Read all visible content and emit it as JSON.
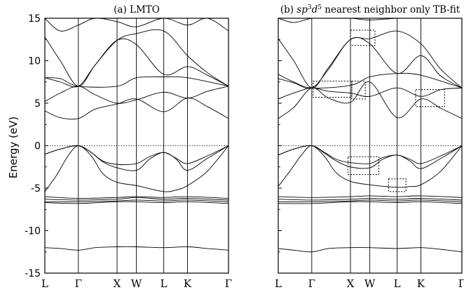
{
  "chart_data": [
    {
      "type": "line",
      "title": "(a) LMTO",
      "ylabel": "Energy (eV)",
      "xlabel": "",
      "ylim": [
        -15,
        15
      ],
      "yticks": [
        15,
        10,
        5,
        0,
        -5,
        -10,
        -15
      ],
      "grid": false,
      "high_symmetry_points": [
        {
          "label": "L",
          "k": 0
        },
        {
          "label": "Γ",
          "k": 0.866
        },
        {
          "label": "X",
          "k": 1.866
        },
        {
          "label": "W",
          "k": 2.366
        },
        {
          "label": "L",
          "k": 3.073
        },
        {
          "label": "K",
          "k": 3.685
        },
        {
          "label": "Γ",
          "k": 4.746
        }
      ],
      "fermi_level": 0,
      "series": [
        {
          "x": [
            0,
            0.4,
            0.866,
            1.3,
            1.866,
            2.366,
            3.073,
            3.685,
            4.2,
            4.746
          ],
          "y": [
            -12.0,
            -12.1,
            -12.3,
            -12.0,
            -11.9,
            -11.9,
            -12.0,
            -11.9,
            -12.1,
            -12.3
          ]
        },
        {
          "x": [
            0,
            0.866,
            1.866,
            2.366,
            3.073,
            3.685,
            4.746
          ],
          "y": [
            -6.0,
            -6.2,
            -6.1,
            -6.0,
            -6.1,
            -6.0,
            -6.2
          ]
        },
        {
          "x": [
            0,
            0.866,
            1.866,
            2.366,
            3.073,
            3.685,
            4.746
          ],
          "y": [
            -6.3,
            -6.4,
            -6.3,
            -6.1,
            -6.3,
            -6.2,
            -6.4
          ]
        },
        {
          "x": [
            0,
            0.866,
            1.866,
            2.366,
            3.073,
            3.685,
            4.746
          ],
          "y": [
            -6.6,
            -6.6,
            -6.5,
            -6.4,
            -6.5,
            -6.4,
            -6.6
          ]
        },
        {
          "x": [
            0,
            0.866,
            1.866,
            2.366,
            3.073,
            3.685,
            4.746
          ],
          "y": [
            -6.7,
            -6.8,
            -6.6,
            -6.6,
            -6.7,
            -6.6,
            -6.8
          ]
        },
        {
          "x": [
            0,
            0.3,
            0.6,
            0.866,
            1.2,
            1.5,
            1.866,
            2.366,
            3.073,
            3.4,
            3.685,
            4.2,
            4.746
          ],
          "y": [
            -5.4,
            -3.5,
            -1.2,
            0,
            -1.2,
            -3.3,
            -4.3,
            -4.7,
            -5.4,
            -5.2,
            -4.7,
            -3.0,
            0
          ]
        },
        {
          "x": [
            0,
            0.4,
            0.866,
            1.2,
            1.5,
            1.866,
            2.366,
            2.7,
            3.073,
            3.4,
            3.685,
            4.2,
            4.746
          ],
          "y": [
            -1.0,
            -0.4,
            0,
            -0.8,
            -1.9,
            -2.6,
            -2.9,
            -1.6,
            -0.8,
            -1.6,
            -2.9,
            -1.5,
            0
          ]
        },
        {
          "x": [
            0,
            0.4,
            0.866,
            1.2,
            1.5,
            1.866,
            2.366,
            2.7,
            3.073,
            3.4,
            3.685,
            4.2,
            4.746
          ],
          "y": [
            -1.0,
            -0.4,
            0,
            -0.8,
            -1.8,
            -2.2,
            -2.1,
            -1.3,
            -0.8,
            -1.5,
            -2.1,
            -1.2,
            0
          ]
        },
        {
          "x": [
            0,
            0.4,
            0.866,
            1.3,
            1.866,
            2.366,
            3.073,
            3.685,
            4.2,
            4.746
          ],
          "y": [
            4.1,
            3.3,
            3.2,
            4.3,
            4.9,
            5.5,
            4.0,
            5.6,
            4.6,
            3.2
          ]
        },
        {
          "x": [
            0,
            0.4,
            0.866,
            1.3,
            1.866,
            2.366,
            3.073,
            3.685,
            4.2,
            4.746
          ],
          "y": [
            5.2,
            6.2,
            7.0,
            6.0,
            5.0,
            5.4,
            6.3,
            5.6,
            6.4,
            7.0
          ]
        },
        {
          "x": [
            0,
            0.4,
            0.866,
            1.3,
            1.866,
            2.366,
            3.073,
            3.685,
            4.2,
            4.746
          ],
          "y": [
            8.0,
            7.5,
            7.0,
            9.5,
            12.4,
            11.9,
            8.4,
            9.3,
            8.3,
            7.0
          ]
        },
        {
          "x": [
            0,
            0.4,
            0.866,
            1.866,
            2.366,
            3.073,
            3.685,
            4.746
          ],
          "y": [
            8.0,
            7.9,
            7.0,
            7.0,
            8.0,
            8.1,
            8.0,
            7.0
          ]
        },
        {
          "x": [
            0,
            0.4,
            0.866,
            1.3,
            1.866,
            2.366,
            3.073,
            3.685,
            4.2,
            4.746
          ],
          "y": [
            12.8,
            10.0,
            7.0,
            9.5,
            12.4,
            13.2,
            13.5,
            10.6,
            8.6,
            7.0
          ]
        },
        {
          "x": [
            0,
            0.4,
            0.866,
            1.3,
            1.866,
            2.366,
            3.073,
            3.685,
            4.2,
            4.746
          ],
          "y": [
            15,
            13.5,
            14.2,
            15,
            14.6,
            14.0,
            15,
            14.2,
            15,
            13.5
          ]
        }
      ]
    },
    {
      "type": "line",
      "title": "(b) sp³d⁵ nearest neighbor only TB-fit",
      "title_parts": {
        "prefix": "(b) ",
        "sp": "sp",
        "sup1": "3",
        "d": "d",
        "sup2": "5",
        "suffix": " nearest neighbor only TB-fit"
      },
      "xlabel": "",
      "ylim": [
        -15,
        15
      ],
      "grid": false,
      "high_symmetry_points": [
        {
          "label": "L",
          "k": 0
        },
        {
          "label": "Γ",
          "k": 0.866
        },
        {
          "label": "X",
          "k": 1.866
        },
        {
          "label": "W",
          "k": 2.366
        },
        {
          "label": "L",
          "k": 3.073
        },
        {
          "label": "K",
          "k": 3.685
        },
        {
          "label": "Γ",
          "k": 4.746
        }
      ],
      "fermi_level": 0,
      "series": [
        {
          "x": [
            0,
            0.4,
            0.866,
            1.3,
            1.866,
            2.366,
            3.073,
            3.685,
            4.2,
            4.746
          ],
          "y": [
            -12.1,
            -12.3,
            -12.5,
            -12.1,
            -12.0,
            -12.0,
            -12.1,
            -12.0,
            -12.2,
            -12.5
          ]
        },
        {
          "x": [
            0,
            0.866,
            1.866,
            2.366,
            3.073,
            3.685,
            4.746
          ],
          "y": [
            -6.0,
            -6.1,
            -6.0,
            -5.9,
            -6.0,
            -5.9,
            -6.1
          ]
        },
        {
          "x": [
            0,
            0.866,
            1.866,
            2.366,
            3.073,
            3.685,
            4.746
          ],
          "y": [
            -6.3,
            -6.4,
            -6.3,
            -6.2,
            -6.3,
            -6.2,
            -6.4
          ]
        },
        {
          "x": [
            0,
            0.866,
            1.866,
            2.366,
            3.073,
            3.685,
            4.746
          ],
          "y": [
            -6.6,
            -6.6,
            -6.5,
            -6.4,
            -6.5,
            -6.4,
            -6.6
          ]
        },
        {
          "x": [
            0,
            0.866,
            1.866,
            2.366,
            3.073,
            3.685,
            4.746
          ],
          "y": [
            -6.8,
            -6.8,
            -6.6,
            -6.6,
            -6.7,
            -6.6,
            -6.8
          ]
        },
        {
          "x": [
            0,
            0.3,
            0.6,
            0.866,
            1.2,
            1.5,
            1.866,
            2.366,
            3.073,
            3.4,
            3.685,
            4.2,
            4.746
          ],
          "y": [
            -4.8,
            -3.0,
            -1.1,
            0,
            -1.3,
            -3.2,
            -4.2,
            -4.6,
            -4.9,
            -4.8,
            -4.6,
            -3.0,
            0
          ]
        },
        {
          "x": [
            0,
            0.4,
            0.866,
            1.2,
            1.5,
            1.866,
            2.366,
            2.7,
            3.073,
            3.4,
            3.685,
            4.2,
            4.746
          ],
          "y": [
            -1.1,
            -0.4,
            0,
            -0.9,
            -1.8,
            -2.5,
            -2.6,
            -1.6,
            -1.1,
            -1.8,
            -2.7,
            -1.5,
            0
          ]
        },
        {
          "x": [
            0,
            0.4,
            0.866,
            1.2,
            1.5,
            1.866,
            2.366,
            2.7,
            3.073,
            3.4,
            3.685,
            4.2,
            4.746
          ],
          "y": [
            -1.1,
            -0.4,
            0,
            -0.8,
            -1.6,
            -2.0,
            -2.1,
            -1.4,
            -1.1,
            -1.6,
            -2.1,
            -1.2,
            0
          ]
        },
        {
          "x": [
            0,
            0.4,
            0.866,
            1.3,
            1.866,
            2.366,
            3.073,
            3.685,
            4.2,
            4.746
          ],
          "y": [
            3.2,
            4.5,
            6.8,
            5.6,
            5.1,
            7.5,
            3.3,
            5.5,
            4.4,
            3.2
          ]
        },
        {
          "x": [
            0,
            0.4,
            0.866,
            1.3,
            1.866,
            2.366,
            3.073,
            3.685,
            4.2,
            4.746
          ],
          "y": [
            5.5,
            6.2,
            6.8,
            6.4,
            6.2,
            5.8,
            6.8,
            5.8,
            6.6,
            6.8
          ]
        },
        {
          "x": [
            0,
            0.4,
            0.866,
            1.3,
            1.866,
            2.366,
            3.073,
            3.685,
            4.2,
            4.746
          ],
          "y": [
            7.9,
            7.4,
            6.8,
            9.0,
            12.5,
            12.0,
            8.5,
            10.6,
            8.2,
            6.8
          ]
        },
        {
          "x": [
            0,
            0.4,
            0.866,
            1.866,
            2.366,
            3.073,
            3.685,
            4.746
          ],
          "y": [
            8.4,
            7.5,
            6.8,
            7.1,
            8.1,
            8.5,
            8.3,
            6.8
          ]
        },
        {
          "x": [
            0,
            0.4,
            0.866,
            1.3,
            1.866,
            2.366,
            3.073,
            3.685,
            4.2,
            4.746
          ],
          "y": [
            12.6,
            10.0,
            6.8,
            9.2,
            12.5,
            12.6,
            13.5,
            12.0,
            9.0,
            6.8
          ]
        },
        {
          "x": [
            0,
            0.4,
            0.866,
            1.3,
            1.866,
            2.366,
            3.073,
            3.685,
            4.2,
            4.746
          ],
          "y": [
            15,
            14.5,
            15,
            15,
            15,
            14.8,
            15,
            15,
            15,
            15
          ]
        }
      ],
      "annotation_boxes": [
        {
          "k_range": [
            1.866,
            2.5
          ],
          "e_range": [
            11.8,
            13.6
          ]
        },
        {
          "k_range": [
            0.9,
            1.9
          ],
          "e_range": [
            5.7,
            7.6
          ]
        },
        {
          "k_range": [
            1.9,
            2.25
          ],
          "e_range": [
            5.5,
            7.6
          ]
        },
        {
          "k_range": [
            3.55,
            4.3
          ],
          "e_range": [
            4.6,
            6.6
          ]
        },
        {
          "k_range": [
            1.8,
            2.6
          ],
          "e_range": [
            -3.4,
            -1.3
          ]
        },
        {
          "k_range": [
            2.85,
            3.3
          ],
          "e_range": [
            -5.4,
            -3.9
          ]
        }
      ]
    }
  ]
}
